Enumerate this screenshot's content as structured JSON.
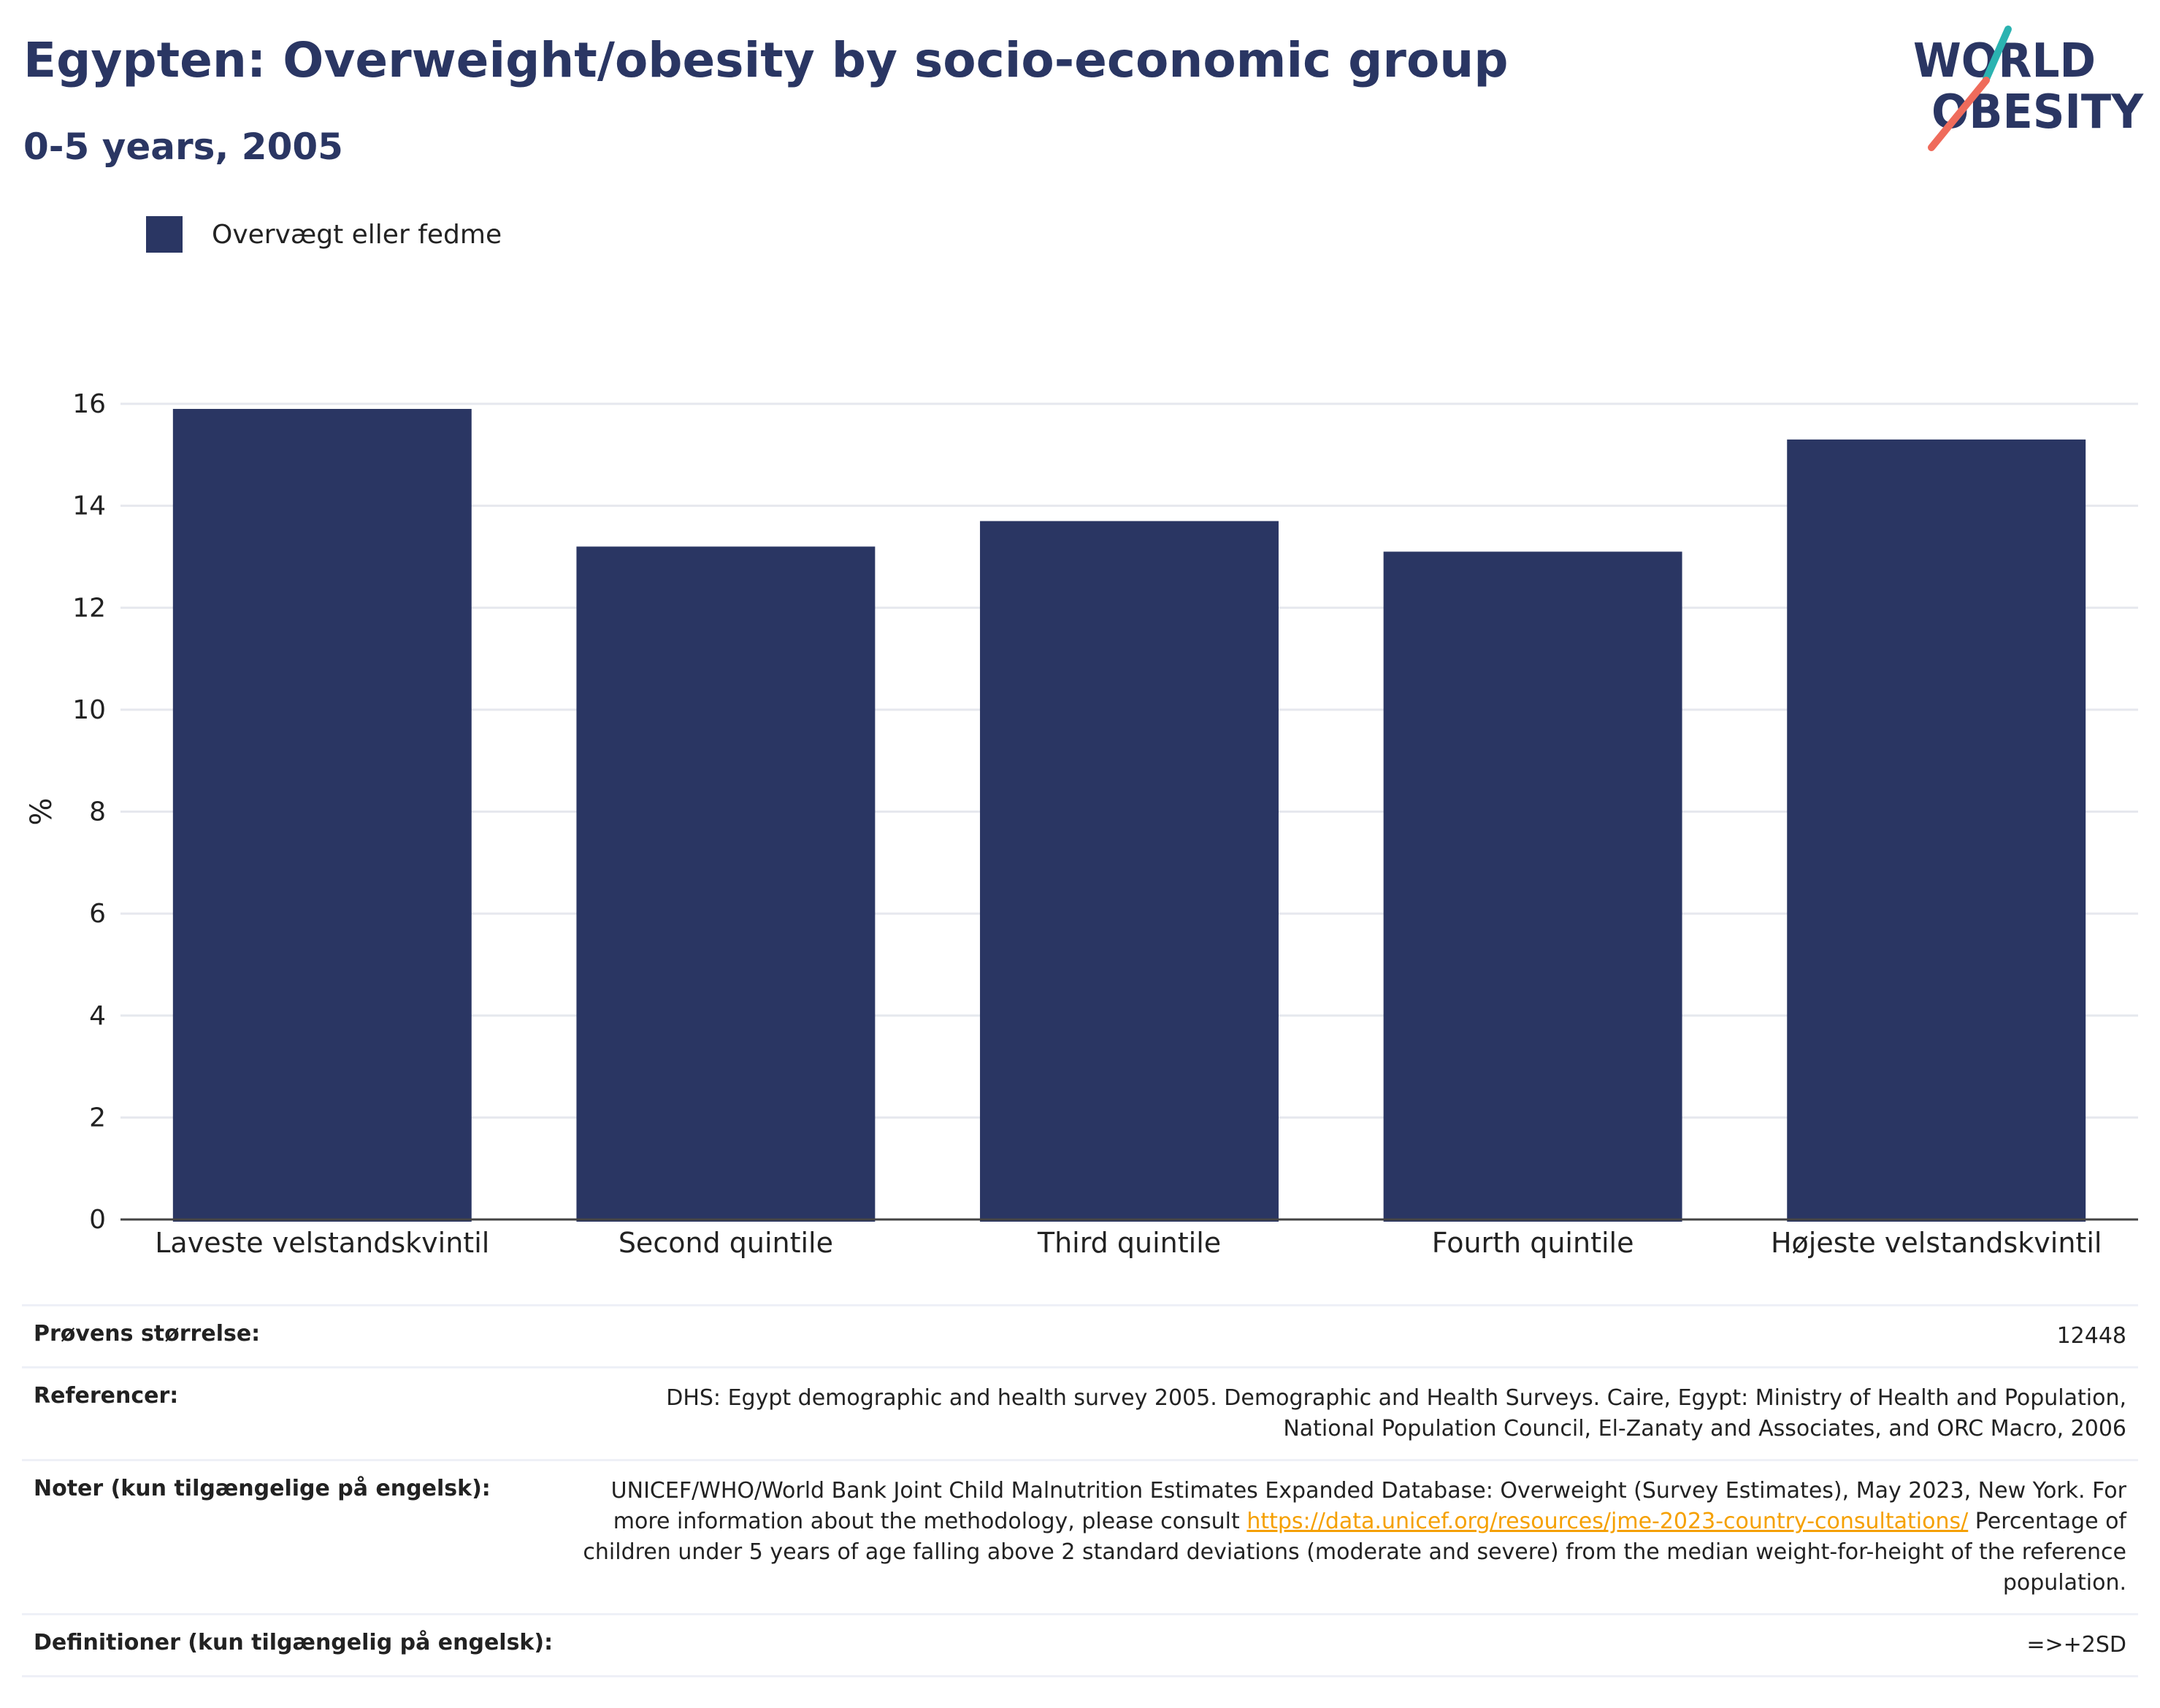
{
  "header": {
    "title": "Egypten: Overweight/obesity by socio-economic group",
    "subtitle": "0-5 years, 2005"
  },
  "logo": {
    "line1": "WORLD",
    "line2": "OBESITY",
    "text_color": "#2a3663",
    "slash_colors": [
      "#2bb3b1",
      "#ef6b5b"
    ]
  },
  "legend": {
    "items": [
      {
        "label": "Overvægt eller fedme",
        "color": "#2a3663"
      }
    ]
  },
  "chart_data": {
    "type": "bar",
    "categories": [
      "Laveste velstandskvintil",
      "Second quintile",
      "Third quintile",
      "Fourth quintile",
      "Højeste velstandskvintil"
    ],
    "series": [
      {
        "name": "Overvægt eller fedme",
        "values": [
          15.9,
          13.2,
          13.7,
          13.1,
          15.3
        ],
        "color": "#2a3663"
      }
    ],
    "xlabel": "",
    "ylabel": "%",
    "ylim": [
      0,
      16
    ],
    "yticks": [
      0,
      2,
      4,
      6,
      8,
      10,
      12,
      14,
      16
    ],
    "grid": true,
    "legend_position": "top-left"
  },
  "info": {
    "rows": [
      {
        "key": "Prøvens størrelse:",
        "value": "12448"
      },
      {
        "key": "Referencer:",
        "value": "DHS: Egypt demographic and health survey 2005. Demographic and Health Surveys. Caire, Egypt: Ministry of Health and Population, National Population Council, El-Zanaty and Associates, and ORC Macro, 2006"
      },
      {
        "key": "Noter (kun tilgængelige på engelsk):",
        "value_before": "UNICEF/WHO/World Bank Joint Child Malnutrition Estimates Expanded Database: Overweight (Survey Estimates), May 2023, New York. For more information about the methodology, please consult",
        "link": "https://data.unicef.org/resources/jme-2023-country-consultations/",
        "value_after": "Percentage of children under 5 years of age falling above 2 standard deviations (moderate and severe) from the median weight-for-height of the reference population."
      },
      {
        "key": "Definitioner (kun tilgængelig på engelsk):",
        "value": "=>+2SD"
      }
    ]
  }
}
